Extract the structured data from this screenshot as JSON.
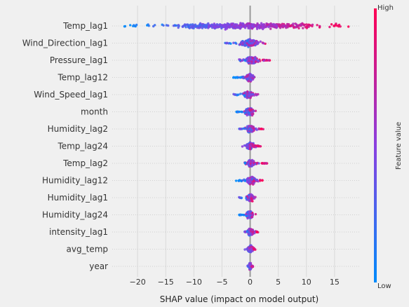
{
  "chart_data": {
    "type": "scatter",
    "subtype": "shap-beeswarm",
    "title": "",
    "xlabel": "SHAP value (impact on model output)",
    "xlim": [
      -24.5,
      19.5
    ],
    "xticks": [
      -20,
      -15,
      -10,
      -5,
      0,
      5,
      10,
      15
    ],
    "xtick_labels": [
      "−20",
      "−15",
      "−10",
      "−5",
      "0",
      "5",
      "10",
      "15"
    ],
    "grid": true,
    "colorbar": {
      "label": "Feature value",
      "high_label": "High",
      "low_label": "Low",
      "high_color": "#ff0052",
      "mid_color": "#8a40e0",
      "low_color": "#008bfb"
    },
    "features": [
      {
        "name": "Temp_lag1",
        "min": -22.5,
        "max": 17.5,
        "dense_min": -20,
        "dense_max": 17
      },
      {
        "name": "Wind_Direction_lag1",
        "min": -4.5,
        "max": 3.0,
        "dense_min": -2,
        "dense_max": 2
      },
      {
        "name": "Pressure_lag1",
        "min": -2.0,
        "max": 3.5,
        "dense_min": -1.2,
        "dense_max": 1.8
      },
      {
        "name": "Temp_lag12",
        "min": -3.0,
        "max": 1.0,
        "dense_min": -1,
        "dense_max": 0.8
      },
      {
        "name": "Wind_Speed_lag1",
        "min": -3.0,
        "max": 1.5,
        "dense_min": -1.5,
        "dense_max": 0.8
      },
      {
        "name": "month",
        "min": -2.5,
        "max": 1.0,
        "dense_min": -1,
        "dense_max": 0.8
      },
      {
        "name": "Humidity_lag2",
        "min": -2.0,
        "max": 2.5,
        "dense_min": -0.8,
        "dense_max": 1
      },
      {
        "name": "Temp_lag24",
        "min": -1.5,
        "max": 2.0,
        "dense_min": -0.8,
        "dense_max": 0.8
      },
      {
        "name": "Temp_lag2",
        "min": -1.0,
        "max": 3.0,
        "dense_min": -0.6,
        "dense_max": 0.8
      },
      {
        "name": "Humidity_lag12",
        "min": -2.5,
        "max": 2.5,
        "dense_min": -1,
        "dense_max": 1.5
      },
      {
        "name": "Humidity_lag1",
        "min": -2.0,
        "max": 1.0,
        "dense_min": -0.8,
        "dense_max": 0.8
      },
      {
        "name": "Humidity_lag24",
        "min": -2.0,
        "max": 1.0,
        "dense_min": -0.8,
        "dense_max": 0.6
      },
      {
        "name": "intensity_lag1",
        "min": -1.0,
        "max": 1.5,
        "dense_min": -0.6,
        "dense_max": 0.8
      },
      {
        "name": "avg_temp",
        "min": -1.0,
        "max": 1.0,
        "dense_min": -0.5,
        "dense_max": 0.6
      },
      {
        "name": "year",
        "min": -0.5,
        "max": 0.5,
        "dense_min": -0.3,
        "dense_max": 0.3
      }
    ]
  }
}
